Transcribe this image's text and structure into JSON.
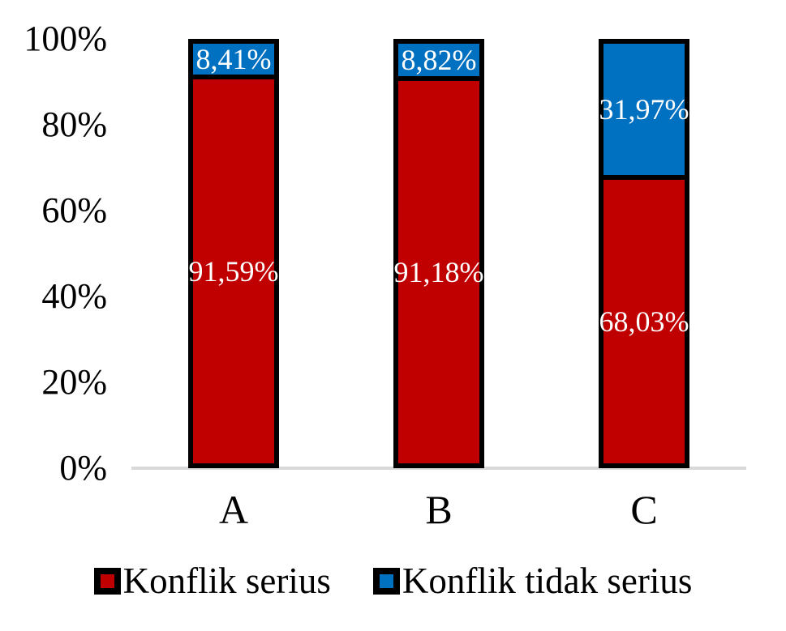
{
  "chart_data": {
    "type": "bar",
    "variant": "stacked-100-percent",
    "title": "",
    "xlabel": "",
    "ylabel": "",
    "categories": [
      "A",
      "B",
      "C"
    ],
    "series": [
      {
        "name": "Konflik serius",
        "color": "#C00000",
        "values": [
          91.59,
          91.18,
          68.03
        ],
        "labels": [
          "91,59%",
          "91,18%",
          "68,03%"
        ]
      },
      {
        "name": "Konflik tidak serius",
        "color": "#0070C0",
        "values": [
          8.41,
          8.82,
          31.97
        ],
        "labels": [
          "8,41%",
          "8,82%",
          "31,97%"
        ]
      }
    ],
    "y_axis": {
      "min": 0,
      "max": 100,
      "tick_step": 20,
      "tick_labels": [
        "0%",
        "20%",
        "40%",
        "60%",
        "80%",
        "100%"
      ]
    },
    "legend": {
      "position": "bottom",
      "entries": [
        {
          "label": "Konflik serius",
          "color": "#C00000"
        },
        {
          "label": "Konflik tidak serius",
          "color": "#0070C0"
        }
      ]
    },
    "grid": false,
    "colors": {
      "background": "#FFFFFF",
      "bar_border": "#000000",
      "axis_line": "#D9D9D9",
      "data_label": "#FFFFFF",
      "tick_label": "#000000"
    }
  }
}
